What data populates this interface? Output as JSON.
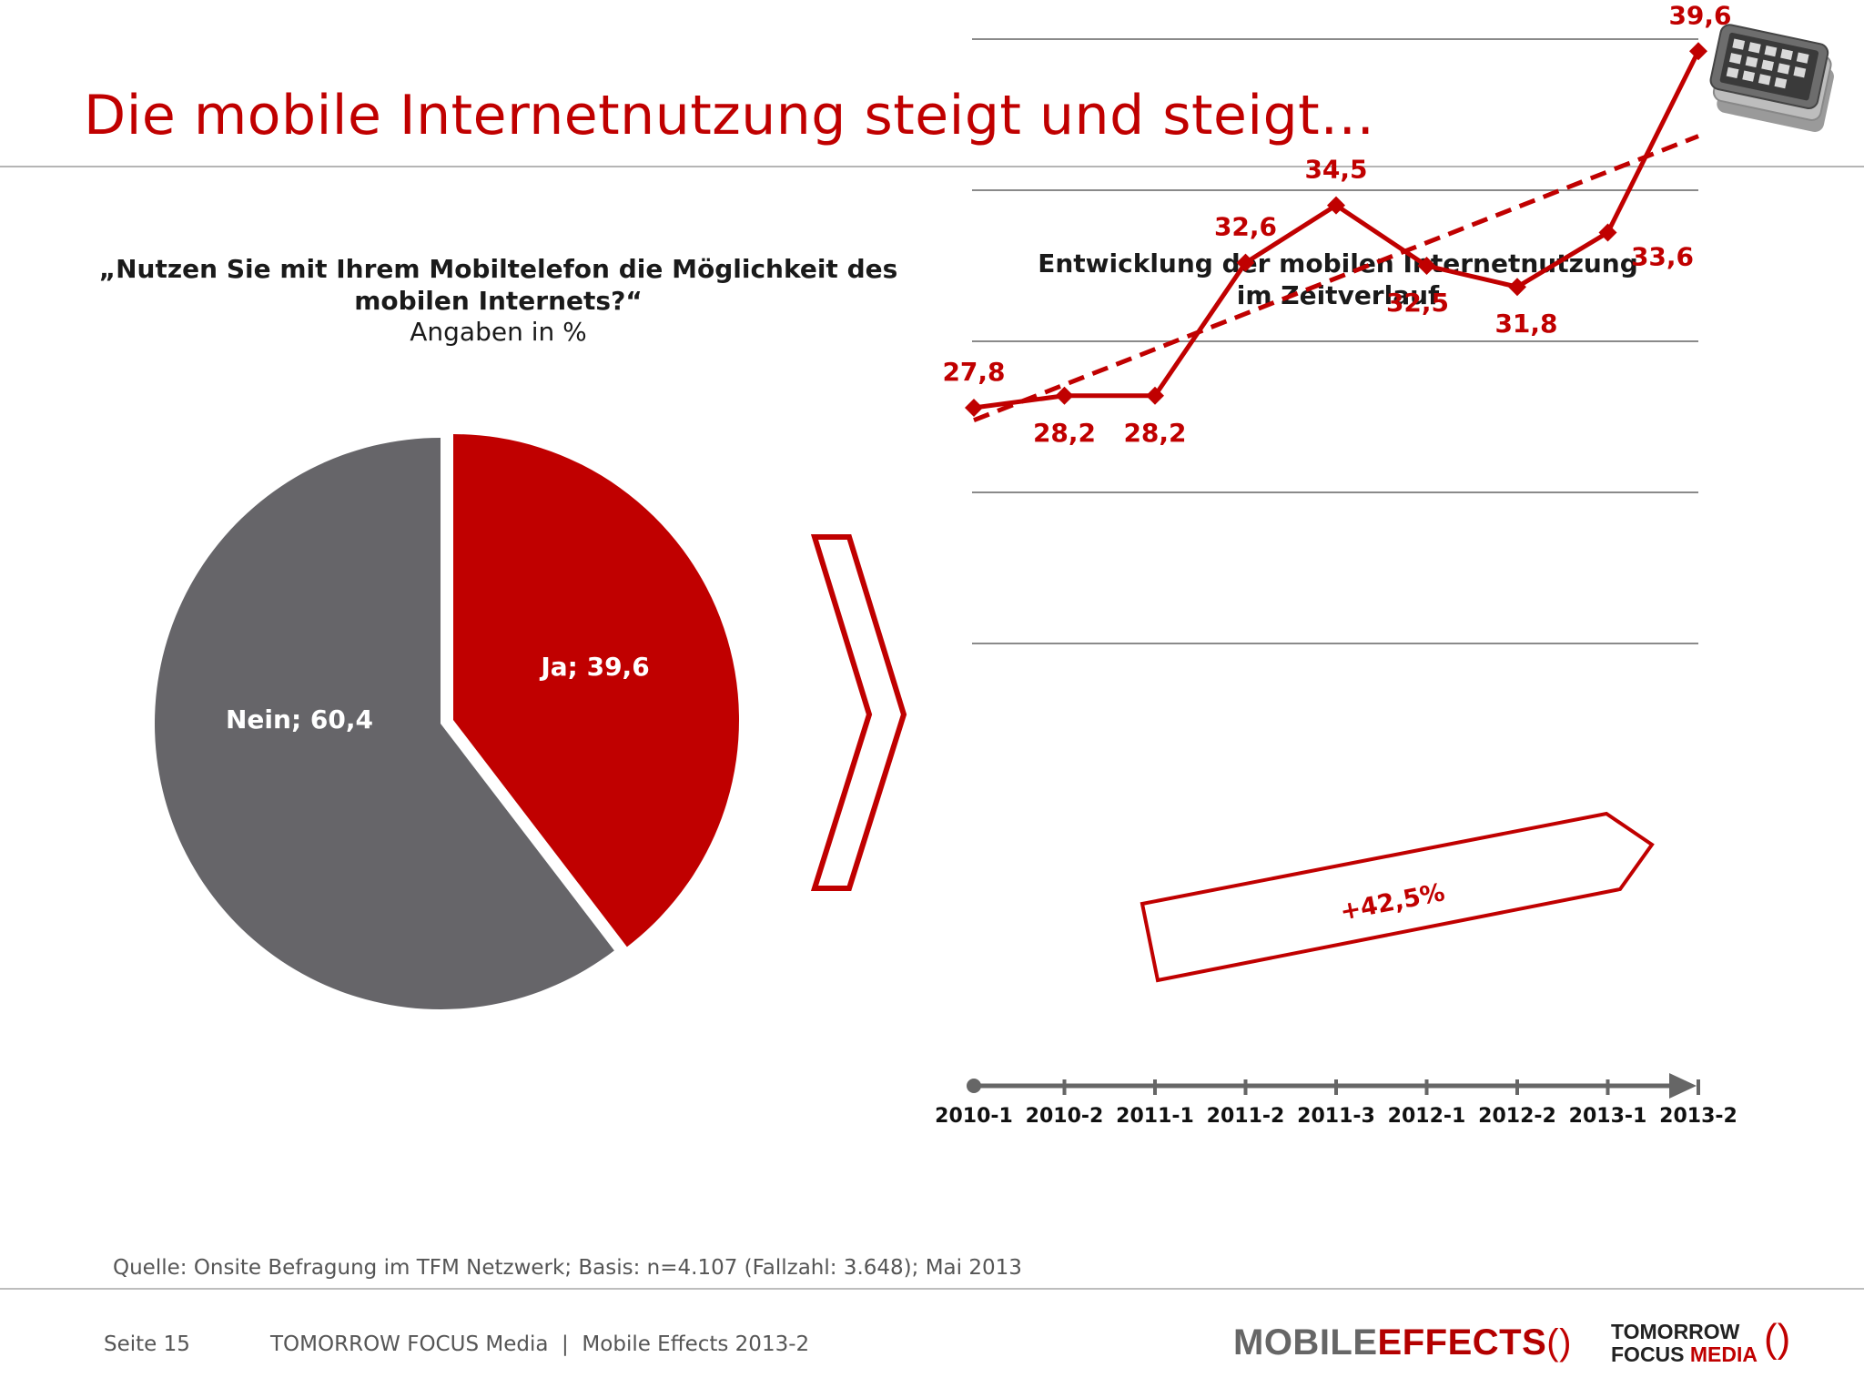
{
  "title": "Die mobile Internetnutzung steigt und steigt…",
  "pie": {
    "question": "„Nutzen Sie mit Ihrem Mobiltelefon die Möglichkeit des mobilen Internets?“",
    "subtitle": "Angaben in %",
    "ja_label": "Ja; 39,6",
    "nein_label": "Nein; 60,4"
  },
  "line": {
    "title_line1": "Entwicklung der mobilen Internetnutzung",
    "title_line2": "im Zeitverlauf",
    "growth_label": "+42,5%"
  },
  "chart_data": [
    {
      "type": "pie",
      "categories": [
        "Ja",
        "Nein"
      ],
      "values": [
        39.6,
        60.4
      ],
      "colors": [
        "#c00000",
        "#666666"
      ],
      "title": "„Nutzen Sie mit Ihrem Mobiltelefon die Möglichkeit des mobilen Internets?“",
      "subtitle": "Angaben in %"
    },
    {
      "type": "line",
      "title": "Entwicklung der mobilen Internetnutzung im Zeitverlauf",
      "x": [
        "2010-1",
        "2010-2",
        "2011-1",
        "2011-2",
        "2011-3",
        "2012-1",
        "2012-2",
        "2013-1",
        "2013-2"
      ],
      "series": [
        {
          "values": [
            27.8,
            28.2,
            28.2,
            32.6,
            34.5,
            32.5,
            31.8,
            33.6,
            39.6
          ],
          "labels": [
            "27,8",
            "28,2",
            "28,2",
            "32,6",
            "34,5",
            "32,5",
            "31,8",
            "33,6",
            "39,6"
          ],
          "color": "#c00000"
        }
      ],
      "trendline": {
        "style": "dashed",
        "color": "#c00000"
      },
      "ylim": [
        20,
        45
      ],
      "grid": true,
      "annotation": "+42,5%"
    }
  ],
  "footer": {
    "source": "Quelle: Onsite Befragung im TFM Netzwerk; Basis: n=4.107 (Fallzahl: 3.648); Mai 2013",
    "page": "Seite 15",
    "brand": "TOMORROW FOCUS Media  |  Mobile Effects 2013-2",
    "logo_mobile": "MOBILE",
    "logo_effects": "EFFECTS",
    "logo_tf_line1": "TOMORROW",
    "logo_tf_line2a": "FOCUS ",
    "logo_tf_line2b": "MEDIA"
  }
}
